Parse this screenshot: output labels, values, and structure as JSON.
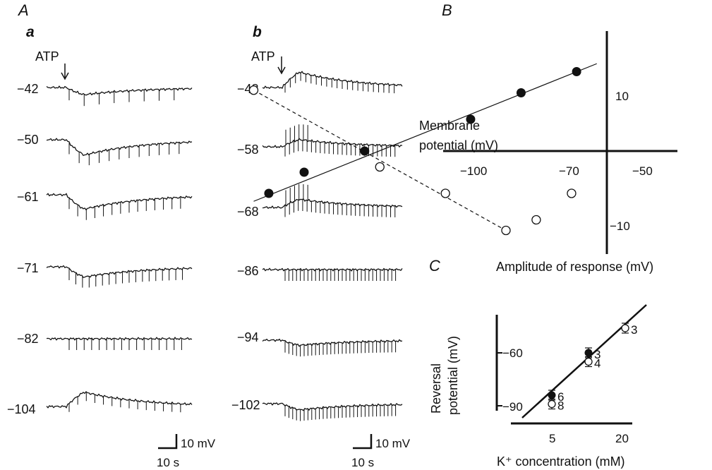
{
  "panels": {
    "A": "A",
    "B": "B",
    "C": "C"
  },
  "panel_A": {
    "a": {
      "label": "a",
      "atp_label": "ATP",
      "traces": [
        {
          "potential": "−42",
          "shape": "dip",
          "amp": 14,
          "spikes": 8
        },
        {
          "potential": "−50",
          "shape": "dip",
          "amp": 30,
          "spikes": 12
        },
        {
          "potential": "−61",
          "shape": "dip",
          "amp": 28,
          "spikes": 14
        },
        {
          "potential": "−71",
          "shape": "dip",
          "amp": 20,
          "spikes": 18
        },
        {
          "potential": "−82",
          "shape": "flat",
          "amp": 3,
          "spikes": 16
        },
        {
          "potential": "−104",
          "shape": "rise",
          "amp": 28,
          "spikes": 14
        }
      ],
      "scale_v": "10 mV",
      "scale_t": "10 s"
    },
    "b": {
      "label": "b",
      "atp_label": "ATP",
      "traces": [
        {
          "potential": "−48",
          "shape": "rise",
          "amp": 30,
          "spikes": 22
        },
        {
          "potential": "−58",
          "shape": "burst",
          "amp": 14,
          "spikes": 26
        },
        {
          "potential": "−68",
          "shape": "burst",
          "amp": 16,
          "spikes": 26
        },
        {
          "potential": "−86",
          "shape": "flat",
          "amp": 2,
          "spikes": 30
        },
        {
          "potential": "−94",
          "shape": "dip",
          "amp": 10,
          "spikes": 30
        },
        {
          "potential": "−102",
          "shape": "dip",
          "amp": 12,
          "spikes": 30
        }
      ],
      "scale_v": "10 mV",
      "scale_t": "10 s"
    }
  },
  "chart_data": [
    {
      "panel": "B",
      "type": "scatter",
      "xlabel": "Membrane potential (mV)",
      "ylabel": "Amplitude of response (mV)",
      "x_ticks": [
        "−100",
        "−70",
        "−50"
      ],
      "y_ticks": [
        "10",
        "−10"
      ],
      "series": [
        {
          "marker": "filled",
          "line": "solid",
          "points": [
            [
              -107,
              -8
            ],
            [
              -100,
              -4
            ],
            [
              -88,
              0
            ],
            [
              -67,
              6
            ],
            [
              -57,
              11
            ],
            [
              -46,
              15
            ]
          ]
        },
        {
          "marker": "open",
          "line": "dashed",
          "points": [
            [
              -110,
              11.5
            ],
            [
              -85,
              -3
            ],
            [
              -72,
              -8
            ],
            [
              -60,
              -15
            ],
            [
              -54,
              -13
            ],
            [
              -47,
              -8
            ]
          ]
        }
      ]
    },
    {
      "panel": "C",
      "type": "scatter",
      "xlabel": "K⁺ concentration (mM)",
      "ylabel": "Reversal potential (mV)",
      "x_ticks": [
        "5",
        "20"
      ],
      "y_ticks": [
        "−60",
        "−90"
      ],
      "xscale": "log",
      "series": [
        {
          "marker": "filled",
          "points": [
            {
              "x": 5,
              "y": -84,
              "n": "6"
            },
            {
              "x": 10,
              "y": -60,
              "n": "3"
            }
          ]
        },
        {
          "marker": "open",
          "points": [
            {
              "x": 5,
              "y": -89,
              "n": "8"
            },
            {
              "x": 10,
              "y": -65,
              "n": "4"
            },
            {
              "x": 20,
              "y": -46,
              "n": "3"
            }
          ]
        }
      ]
    }
  ]
}
